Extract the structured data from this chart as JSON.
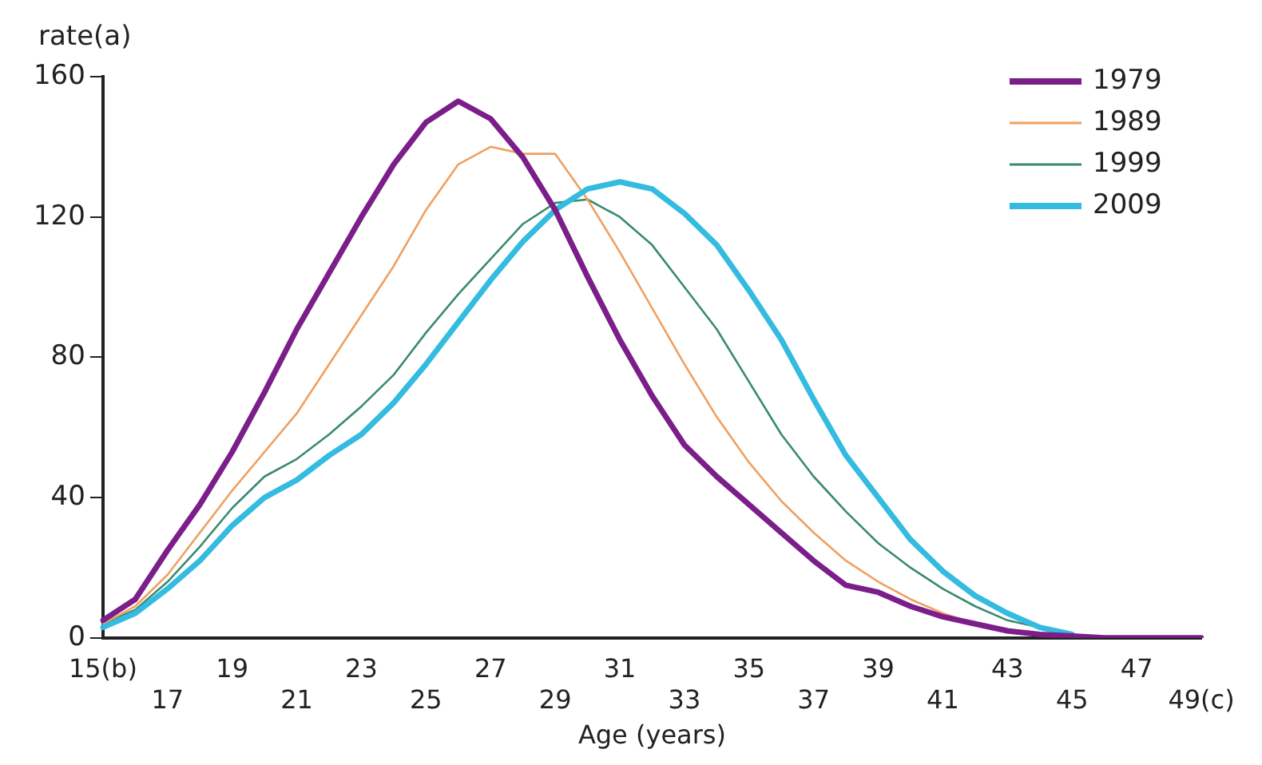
{
  "chart_data": {
    "type": "line",
    "ylabel": "rate(a)",
    "xlabel": "Age (years)",
    "categories": [
      "15(b)",
      null,
      "17",
      null,
      "19",
      null,
      "21",
      null,
      "23",
      null,
      "25",
      null,
      "27",
      null,
      "29",
      null,
      "31",
      null,
      "33",
      null,
      "35",
      null,
      "37",
      null,
      "39",
      null,
      "41",
      null,
      "43",
      null,
      "45",
      null,
      "47",
      null,
      "49(c)"
    ],
    "series": [
      {
        "name": "1979",
        "color": "#7b1e8a",
        "values": [
          5,
          11,
          25,
          38,
          53,
          70,
          88,
          104,
          120,
          135,
          147,
          153,
          148,
          137,
          122,
          103,
          85,
          69,
          55,
          46,
          38,
          30,
          22,
          15,
          13,
          9,
          6,
          4,
          2,
          1,
          0.5,
          0,
          0,
          0,
          0
        ]
      },
      {
        "name": "1989",
        "color": "#f0a060",
        "values": [
          4,
          9,
          18,
          30,
          42,
          53,
          64,
          78,
          92,
          106,
          122,
          135,
          140,
          138,
          138,
          125,
          110,
          94,
          78,
          63,
          50,
          39,
          30,
          22,
          16,
          11,
          7,
          4,
          2,
          1,
          null,
          null,
          null,
          null,
          null
        ]
      },
      {
        "name": "1999",
        "color": "#3a8a70",
        "values": [
          4,
          8,
          16,
          26,
          37,
          46,
          51,
          58,
          66,
          75,
          87,
          98,
          108,
          118,
          124,
          125,
          120,
          112,
          100,
          88,
          73,
          58,
          46,
          36,
          27,
          20,
          14,
          9,
          5,
          3,
          1,
          null,
          null,
          null,
          null
        ]
      },
      {
        "name": "2009",
        "color": "#33bbe0",
        "values": [
          3,
          7,
          14,
          22,
          32,
          40,
          45,
          52,
          58,
          67,
          78,
          90,
          102,
          113,
          122,
          128,
          130,
          128,
          121,
          112,
          99,
          85,
          68,
          52,
          40,
          28,
          19,
          12,
          7,
          3,
          1,
          null,
          null,
          null,
          null
        ]
      }
    ],
    "ylim": [
      0,
      160
    ],
    "yticks": [
      0,
      40,
      80,
      120,
      160
    ],
    "grid": false,
    "legend": "top right",
    "marker": "none",
    "line_style": "solid"
  }
}
